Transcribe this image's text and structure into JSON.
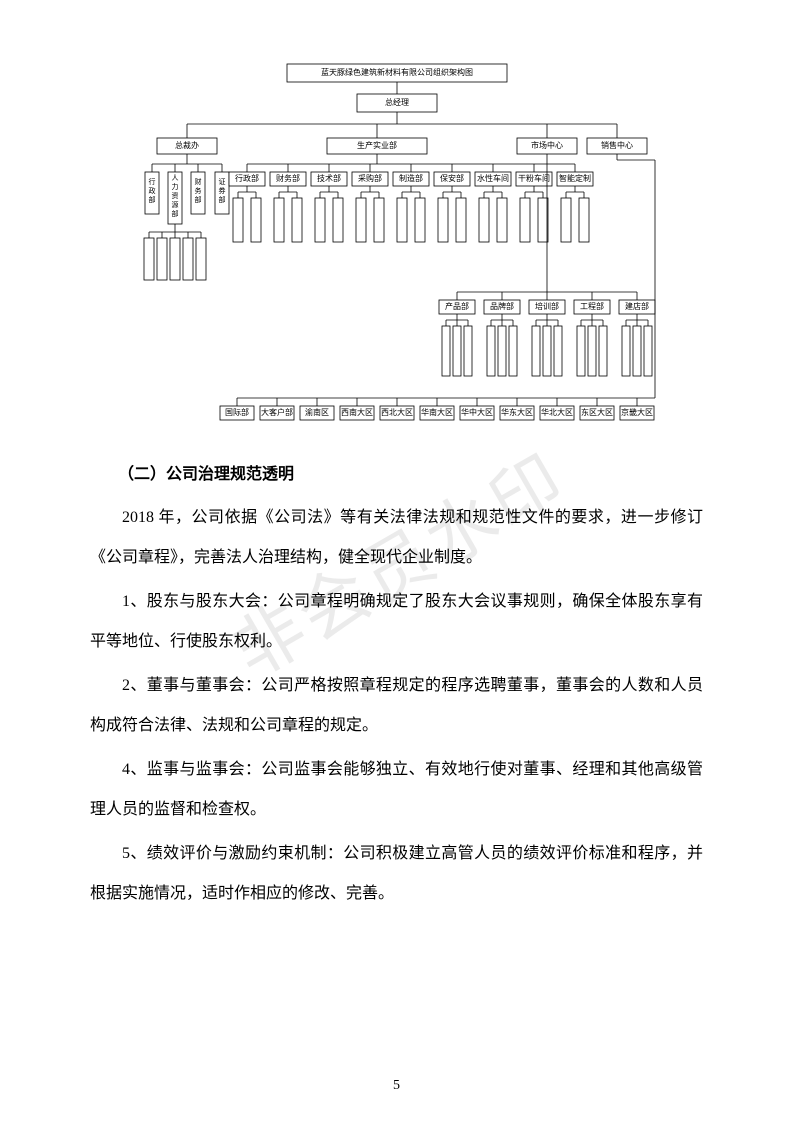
{
  "chart": {
    "type": "org-chart",
    "title": "蓝天豚绿色建筑新材料有限公司组织架构图",
    "line_color": "#000000",
    "border_color": "#000000",
    "background_color": "#ffffff",
    "font_family": "SimHei",
    "title_fontsize": 9,
    "box_fontsize": 8,
    "vertical_box_fontsize": 7,
    "root": "总经理",
    "level2": [
      {
        "label": "总裁办",
        "children_vertical": [
          "行政部",
          "人力资源部",
          "财务部",
          "证券部"
        ]
      },
      {
        "label": "生产实业部",
        "children_h": [
          "行政部",
          "财务部",
          "技术部",
          "采购部",
          "制造部",
          "保安部",
          "水性车间",
          "干粉车间",
          "智能定制"
        ]
      },
      {
        "label": "市场中心",
        "children_h": [
          "产品部",
          "品牌部",
          "培训部",
          "工程部",
          "建店部"
        ]
      },
      {
        "label": "销售中心",
        "children_h": [
          "国际部",
          "大客户部",
          "渝南区",
          "西南大区",
          "西北大区",
          "华南大区",
          "华中大区",
          "华东大区",
          "华北大区",
          "东区大区",
          "京畿大区"
        ]
      }
    ],
    "sub_boxes_row1": [
      "",
      "",
      "",
      "",
      "",
      "",
      "",
      "",
      "",
      "",
      "",
      "",
      "",
      "",
      "",
      "",
      "",
      "",
      ""
    ],
    "sub_boxes_row2": [
      "",
      "",
      "",
      "",
      "",
      "",
      "",
      ""
    ]
  },
  "heading": "（二）公司治理规范透明",
  "paragraphs": [
    "2018 年，公司依据《公司法》等有关法律法规和规范性文件的要求，进一步修订《公司章程》，完善法人治理结构，健全现代企业制度。",
    "1、股东与股东大会：公司章程明确规定了股东大会议事规则，确保全体股东享有平等地位、行使股东权利。",
    "2、董事与董事会：公司严格按照章程规定的程序选聘董事，董事会的人数和人员构成符合法律、法规和公司章程的规定。",
    "4、监事与监事会：公司监事会能够独立、有效地行使对董事、经理和其他高级管理人员的监督和检查权。",
    "5、绩效评价与激励约束机制：公司积极建立高管人员的绩效评价标准和程序，并根据实施情况，适时作相应的修改、完善。"
  ],
  "page_number": "5",
  "watermark": "非会员水印"
}
